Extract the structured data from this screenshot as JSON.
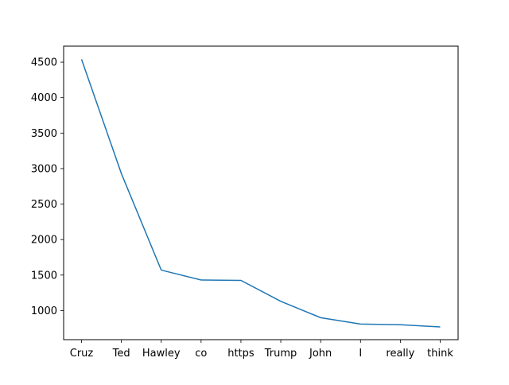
{
  "chart_data": {
    "type": "line",
    "title": "",
    "xlabel": "",
    "ylabel": "",
    "categories": [
      "Cruz",
      "Ted",
      "Hawley",
      "co",
      "https",
      "Trump",
      "John",
      "I",
      "really",
      "think"
    ],
    "values": [
      4540,
      2930,
      1570,
      1430,
      1425,
      1130,
      900,
      810,
      800,
      770
    ],
    "ylim": [
      590,
      4725
    ],
    "yticks": [
      1000,
      1500,
      2000,
      2500,
      3000,
      3500,
      4000,
      4500
    ],
    "grid": false,
    "line_color": "#1f77b4"
  }
}
